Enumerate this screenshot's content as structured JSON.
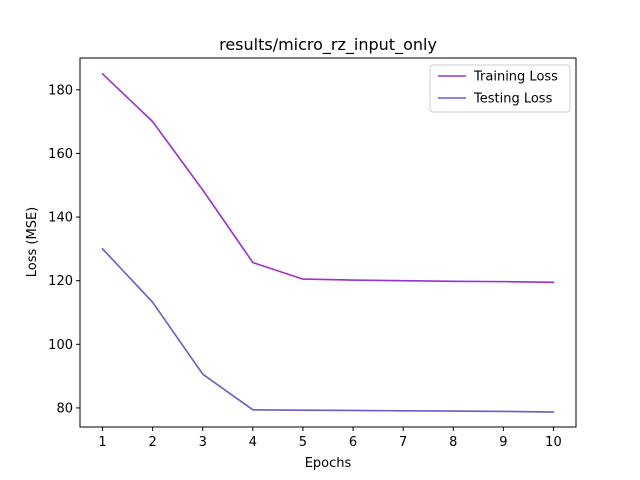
{
  "chart_data": {
    "type": "line",
    "title": "results/micro_rz_input_only",
    "xlabel": "Epochs",
    "ylabel": "Loss (MSE)",
    "x": [
      1,
      2,
      3,
      4,
      5,
      6,
      7,
      8,
      9,
      10
    ],
    "xlim": [
      0.55,
      10.45
    ],
    "ylim": [
      74,
      190
    ],
    "xticks": [
      1,
      2,
      3,
      4,
      5,
      6,
      7,
      8,
      9,
      10
    ],
    "yticks": [
      80,
      100,
      120,
      140,
      160,
      180
    ],
    "grid": false,
    "legend_position": "top-right",
    "series": [
      {
        "name": "Training Loss",
        "color": "#9b30d0",
        "values": [
          185.0,
          170.0,
          148.5,
          125.7,
          120.5,
          120.2,
          120.0,
          119.8,
          119.7,
          119.5
        ]
      },
      {
        "name": "Testing Loss",
        "color": "#6a5acd",
        "values": [
          130.0,
          113.2,
          90.6,
          79.4,
          79.3,
          79.2,
          79.1,
          79.0,
          78.9,
          78.7
        ]
      }
    ]
  }
}
